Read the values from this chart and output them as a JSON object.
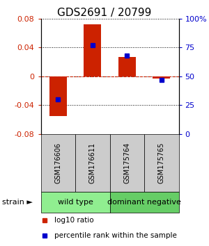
{
  "title": "GDS2691 / 20799",
  "samples": [
    "GSM176606",
    "GSM176611",
    "GSM175764",
    "GSM175765"
  ],
  "log10_ratio": [
    -0.055,
    0.072,
    0.027,
    -0.003
  ],
  "percentile_rank": [
    30.0,
    77.0,
    68.0,
    47.0
  ],
  "ylim_left": [
    -0.08,
    0.08
  ],
  "ylim_right": [
    0,
    100
  ],
  "yticks_left": [
    -0.08,
    -0.04,
    0,
    0.04,
    0.08
  ],
  "yticks_right": [
    0,
    25,
    50,
    75,
    100
  ],
  "ytick_labels_right": [
    "0",
    "25",
    "50",
    "75",
    "100%"
  ],
  "ytick_labels_left": [
    "-0.08",
    "-0.04",
    "0",
    "0.04",
    "0.08"
  ],
  "groups": [
    {
      "label": "wild type",
      "indices": [
        0,
        1
      ],
      "color": "#90EE90"
    },
    {
      "label": "dominant negative",
      "indices": [
        2,
        3
      ],
      "color": "#66CD66"
    }
  ],
  "bar_color_red": "#CC2200",
  "bar_color_blue": "#0000CC",
  "bar_width": 0.5,
  "legend_red_label": "log10 ratio",
  "legend_blue_label": "percentile rank within the sample",
  "strain_label": "strain",
  "grid_color": "black",
  "grid_linestyle": "dotted",
  "zero_line_color": "#CC2200",
  "zero_line_style": "dashed",
  "bg_color": "white",
  "plot_bg_color": "white",
  "label_box_color": "#CCCCCC",
  "title_fontsize": 11,
  "tick_fontsize": 8,
  "legend_fontsize": 7.5,
  "sample_fontsize": 7,
  "group_fontsize": 8
}
